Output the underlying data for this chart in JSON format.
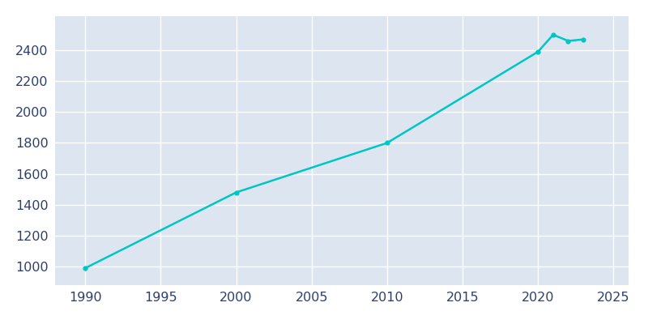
{
  "years": [
    1990,
    2000,
    2010,
    2020,
    2021,
    2022,
    2023
  ],
  "population": [
    990,
    1480,
    1800,
    2390,
    2500,
    2460,
    2470
  ],
  "line_color": "#00C5C5",
  "marker": "o",
  "marker_size": 3.5,
  "line_width": 1.8,
  "plot_bg_color": "#dde6f0",
  "fig_bg_color": "#ffffff",
  "xlim": [
    1988,
    2026
  ],
  "ylim": [
    880,
    2620
  ],
  "xticks": [
    1990,
    1995,
    2000,
    2005,
    2010,
    2015,
    2020,
    2025
  ],
  "yticks": [
    1000,
    1200,
    1400,
    1600,
    1800,
    2000,
    2200,
    2400
  ],
  "grid_color": "#ffffff",
  "tick_label_color": "#2e3f6e",
  "tick_fontsize": 11.5
}
